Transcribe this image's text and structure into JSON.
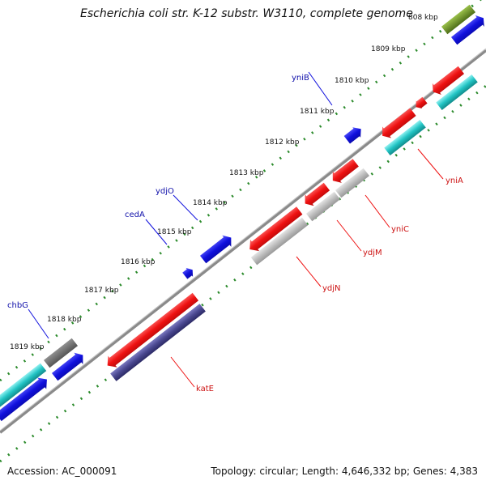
{
  "title": "Escherichia coli str. K-12 substr. W3110, complete genome",
  "footer": {
    "accession": "Accession: AC_000091",
    "topology": "Topology: circular; Length: 4,646,332 bp; Genes: 4,383"
  },
  "colors": {
    "backbone": "#888888",
    "ruler": "#2a8a2a",
    "plus_cds": "#1010dd",
    "minus_cds": "#ee1111",
    "gray_feature": "#b8b8b8",
    "dark_gray_feature": "#666666",
    "cyan_feature": "#22c4c4",
    "navy_feature": "#4a4890",
    "olive_feature": "#6a8c24",
    "plus_label": "#1010aa",
    "minus_label": "#cc1111"
  },
  "ruler_ticks": [
    "808 kbp",
    "1809 kbp",
    "1810 kbp",
    "1811 kbp",
    "1812 kbp",
    "1813 kbp",
    "1814 kbp",
    "1815 kbp",
    "1816 kbp",
    "1817 kbp",
    "1818 kbp",
    "1819 kbp"
  ],
  "gene_labels": {
    "yniB": "yniB",
    "ydjO": "ydjO",
    "cedA": "cedA",
    "chbG": "chbG",
    "yniA": "yniA",
    "yniC": "yniC",
    "ydjM": "ydjM",
    "ydjN": "ydjN",
    "katE": "katE"
  }
}
